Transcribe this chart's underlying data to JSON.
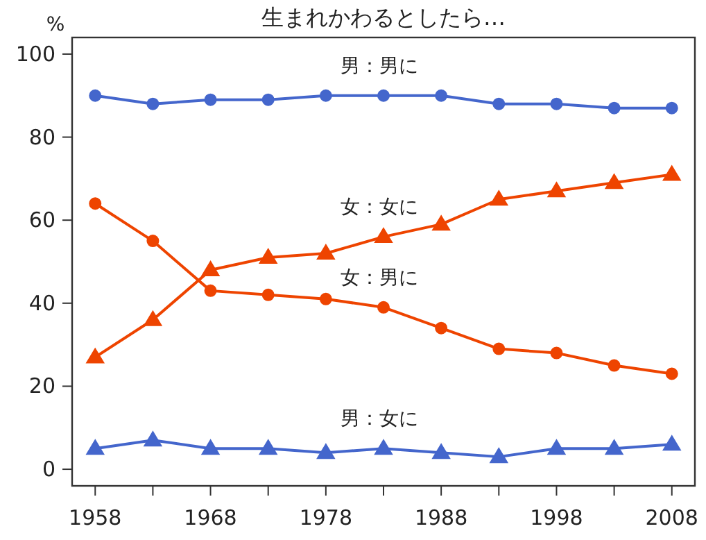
{
  "chart_data": {
    "type": "line",
    "title": "生まれかわるとしたら…",
    "ylabel": "%",
    "x": [
      1958,
      1963,
      1968,
      1973,
      1978,
      1983,
      1988,
      1993,
      1998,
      2003,
      2008
    ],
    "xlim": [
      1956,
      2010
    ],
    "ylim": [
      -4,
      104
    ],
    "xticks": [
      1958,
      {
        "value": 1963,
        "label": null
      },
      1968,
      {
        "value": 1973,
        "label": null
      },
      1978,
      {
        "value": 1983,
        "label": null
      },
      1988,
      {
        "value": 1993,
        "label": null
      },
      1998,
      {
        "value": 2003,
        "label": null
      },
      2008
    ],
    "yticks": [
      0,
      20,
      40,
      60,
      80,
      100
    ],
    "grid": false,
    "legend": false,
    "line_style": "solid",
    "series": [
      {
        "name": "男：男に",
        "color": "#4466cc",
        "marker": "circle",
        "values": [
          90,
          88,
          89,
          89,
          90,
          90,
          90,
          88,
          88,
          87,
          87
        ]
      },
      {
        "name": "女：女に",
        "color": "#ee4400",
        "marker": "triangle",
        "values": [
          27,
          36,
          48,
          51,
          52,
          56,
          59,
          65,
          67,
          69,
          71
        ]
      },
      {
        "name": "女：男に",
        "color": "#ee4400",
        "marker": "circle",
        "values": [
          64,
          55,
          43,
          42,
          41,
          39,
          34,
          29,
          28,
          25,
          23
        ]
      },
      {
        "name": "男：女に",
        "color": "#4466cc",
        "marker": "triangle",
        "values": [
          5,
          7,
          5,
          5,
          4,
          5,
          4,
          3,
          5,
          5,
          6
        ]
      }
    ]
  }
}
